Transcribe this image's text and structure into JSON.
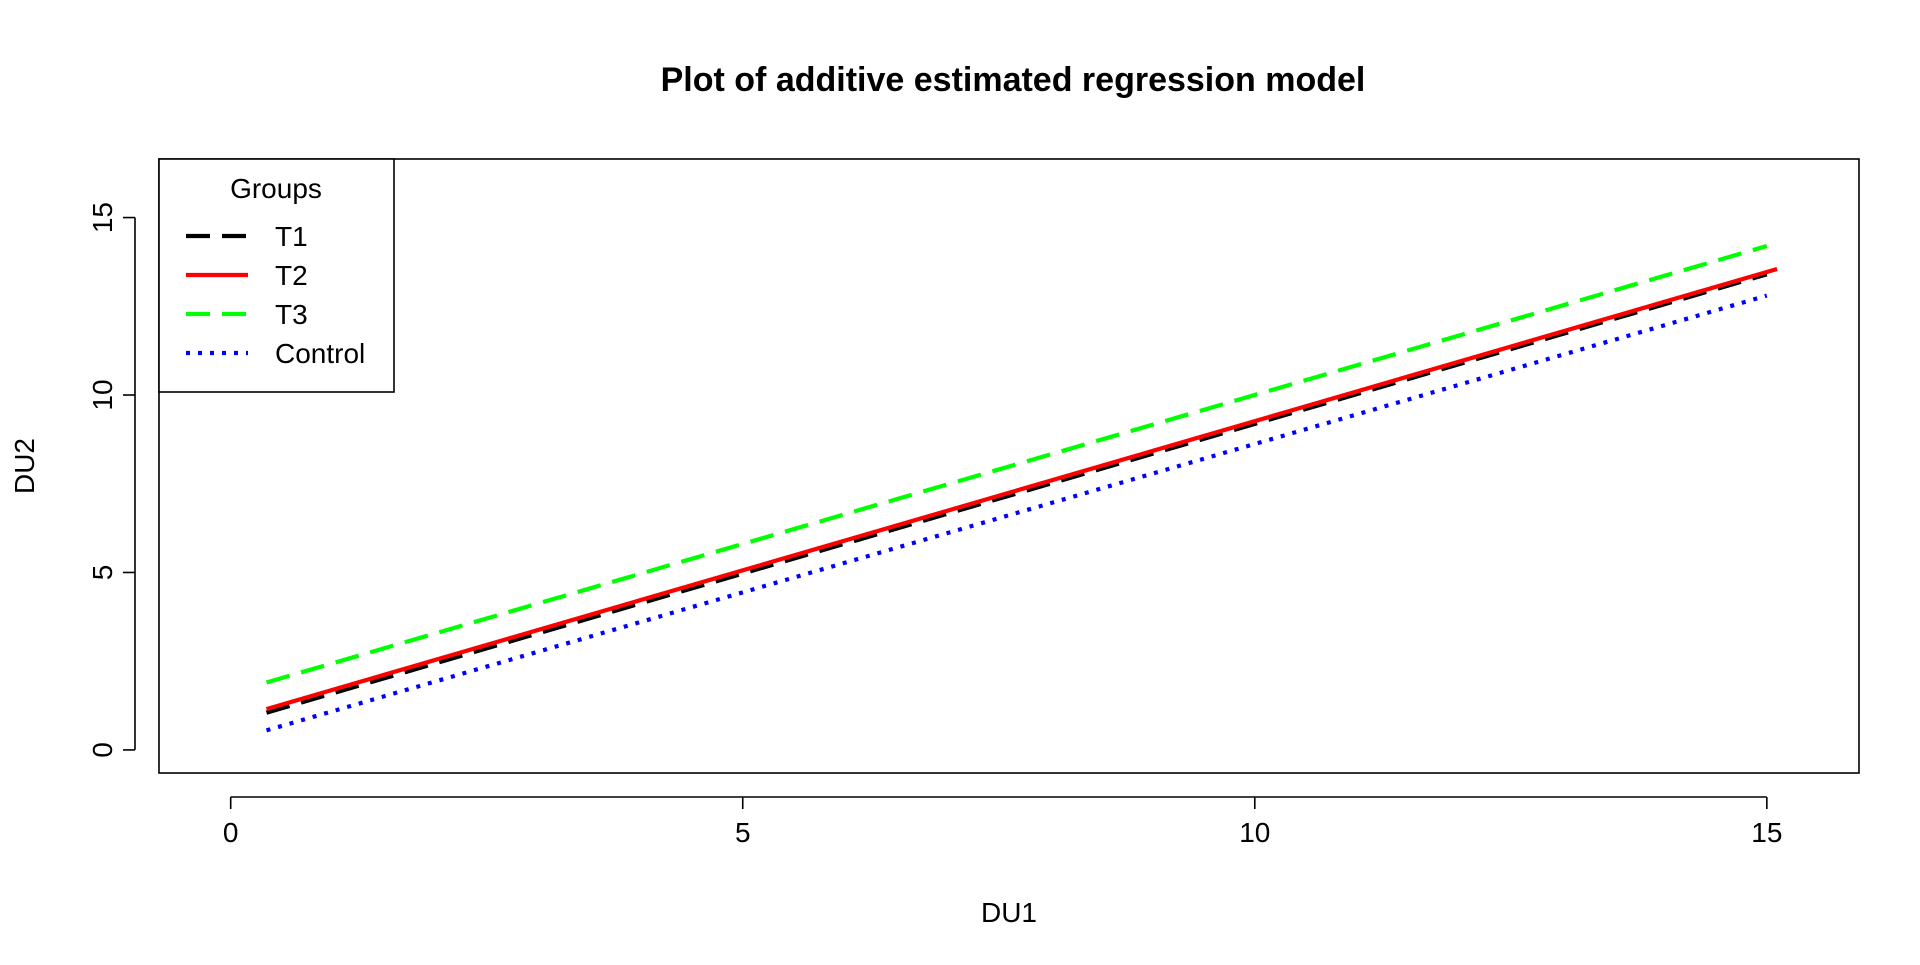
{
  "chart_data": {
    "type": "line",
    "title": "Plot of additive estimated regression model",
    "xlabel": "DU1",
    "ylabel": "DU2",
    "xlim": [
      -0.7,
      15.9
    ],
    "ylim": [
      -0.65,
      16.65
    ],
    "x_ticks": [
      0,
      5,
      10,
      15
    ],
    "y_ticks": [
      0,
      5,
      10,
      15
    ],
    "x_tick_labels": [
      "0",
      "5",
      "10",
      "15"
    ],
    "y_tick_labels": [
      "0",
      "5",
      "10",
      "15"
    ],
    "grid": false,
    "legend": {
      "title": "Groups",
      "position": "top-left",
      "entries": [
        "T1",
        "T2",
        "T3",
        "Control"
      ]
    },
    "series": [
      {
        "name": "T1",
        "color": "#000000",
        "style": "dashed",
        "x": [
          0.35,
          15.0
        ],
        "y": [
          1.05,
          13.4
        ]
      },
      {
        "name": "T2",
        "color": "#ff0000",
        "style": "solid",
        "x": [
          0.35,
          15.1
        ],
        "y": [
          1.15,
          13.55
        ]
      },
      {
        "name": "T3",
        "color": "#00ff00",
        "style": "dashed",
        "x": [
          0.35,
          15.0
        ],
        "y": [
          1.9,
          14.2
        ]
      },
      {
        "name": "Control",
        "color": "#0000ff",
        "style": "dotted",
        "x": [
          0.35,
          15.0
        ],
        "y": [
          0.55,
          12.8
        ]
      }
    ]
  }
}
